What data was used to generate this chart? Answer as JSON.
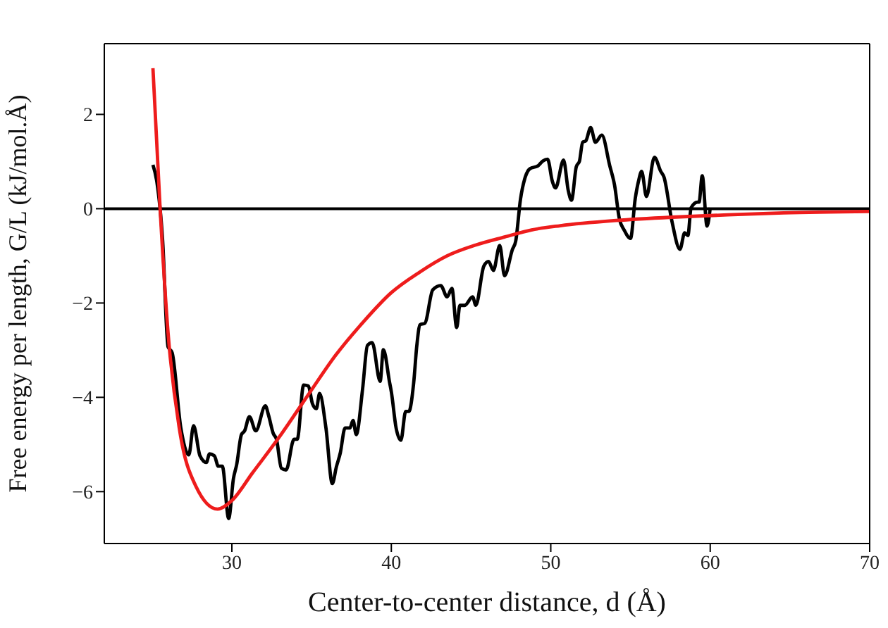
{
  "chart_data": {
    "type": "line",
    "xlabel": "Center-to-center distance, d (Å)",
    "ylabel": "Free energy per length, G/L (kJ/mol.Å)",
    "xlim": [
      22,
      70
    ],
    "xticks": [
      30,
      40,
      50,
      60,
      70
    ],
    "ylim": [
      -7.1,
      3.5
    ],
    "yticks": [
      -6,
      -4,
      -2,
      0,
      2
    ],
    "grid": false,
    "legend": false,
    "marker": "none",
    "line_style": "solid",
    "ref_lines": [
      {
        "axis": "y",
        "value": 0,
        "color": "#000000"
      }
    ],
    "series": [
      {
        "color": "#000000",
        "x": [
          25.05,
          25.3,
          25.65,
          26.0,
          26.25,
          26.8,
          27.3,
          27.6,
          28.0,
          28.4,
          28.6,
          28.9,
          29.15,
          29.4,
          29.8,
          30.1,
          30.3,
          30.6,
          30.8,
          31.1,
          31.5,
          32.1,
          32.3,
          32.6,
          32.8,
          33.1,
          33.4,
          33.9,
          34.1,
          34.5,
          34.8,
          35.05,
          35.3,
          35.5,
          35.9,
          36.3,
          36.55,
          36.8,
          37.1,
          37.4,
          37.6,
          37.8,
          38.2,
          38.5,
          38.8,
          39.3,
          39.5,
          39.9,
          40.0,
          40.3,
          40.6,
          40.9,
          41.1,
          41.4,
          41.6,
          41.8,
          42.1,
          42.6,
          43.1,
          43.5,
          43.8,
          44.1,
          44.3,
          44.6,
          45.1,
          45.3,
          45.8,
          46.1,
          46.4,
          46.8,
          47.1,
          47.6,
          47.8,
          48.1,
          48.4,
          48.7,
          49.2,
          49.5,
          49.8,
          50.1,
          50.3,
          50.8,
          51.1,
          51.3,
          51.6,
          51.8,
          52.0,
          52.2,
          52.5,
          52.8,
          53.2,
          53.7,
          54.0,
          54.3,
          54.6,
          55.0,
          55.3,
          55.5,
          55.7,
          56.0,
          56.5,
          56.9,
          57.1,
          57.6,
          58.1,
          58.4,
          58.6,
          58.8,
          59.2,
          59.3,
          59.5,
          59.8,
          60.0
        ],
        "values": [
          0.93,
          0.56,
          -0.63,
          -2.93,
          -3.05,
          -4.65,
          -5.22,
          -4.6,
          -5.24,
          -5.38,
          -5.2,
          -5.24,
          -5.46,
          -5.46,
          -6.57,
          -5.72,
          -5.43,
          -4.79,
          -4.71,
          -4.41,
          -4.71,
          -4.18,
          -4.38,
          -4.77,
          -4.89,
          -5.5,
          -5.54,
          -4.89,
          -4.89,
          -3.74,
          -3.76,
          -4.13,
          -4.24,
          -3.92,
          -4.65,
          -5.83,
          -5.48,
          -5.18,
          -4.65,
          -4.65,
          -4.49,
          -4.79,
          -3.82,
          -2.9,
          -2.84,
          -3.66,
          -2.99,
          -3.7,
          -3.88,
          -4.65,
          -4.91,
          -4.3,
          -4.3,
          -3.7,
          -2.9,
          -2.46,
          -2.43,
          -1.72,
          -1.63,
          -1.87,
          -1.69,
          -2.52,
          -2.05,
          -2.05,
          -1.87,
          -2.05,
          -1.22,
          -1.12,
          -1.31,
          -0.78,
          -1.42,
          -0.86,
          -0.69,
          0.2,
          0.67,
          0.85,
          0.91,
          1.01,
          1.05,
          0.58,
          0.44,
          1.03,
          0.38,
          0.18,
          0.89,
          1.01,
          1.41,
          1.44,
          1.72,
          1.41,
          1.56,
          0.91,
          0.5,
          -0.21,
          -0.45,
          -0.63,
          0.22,
          0.58,
          0.79,
          0.26,
          1.09,
          0.79,
          0.67,
          -0.27,
          -0.86,
          -0.51,
          -0.57,
          0.02,
          0.14,
          0.14,
          0.7,
          -0.37,
          0.02
        ]
      },
      {
        "color": "#ee1c1c",
        "x": [
          25.05,
          25.5,
          26.0,
          26.7,
          27.75,
          29.1,
          30.0,
          31.3,
          33.0,
          34.8,
          36.5,
          38.3,
          40.0,
          41.8,
          43.5,
          45.3,
          47.1,
          48.8,
          50.6,
          54.1,
          57.6,
          61.1,
          64.6,
          70.0
        ],
        "values": [
          2.98,
          0,
          -2.64,
          -4.65,
          -5.89,
          -6.37,
          -6.19,
          -5.6,
          -4.83,
          -3.94,
          -3.11,
          -2.38,
          -1.78,
          -1.34,
          -1.0,
          -0.77,
          -0.6,
          -0.45,
          -0.36,
          -0.25,
          -0.18,
          -0.13,
          -0.09,
          -0.06
        ]
      }
    ]
  }
}
